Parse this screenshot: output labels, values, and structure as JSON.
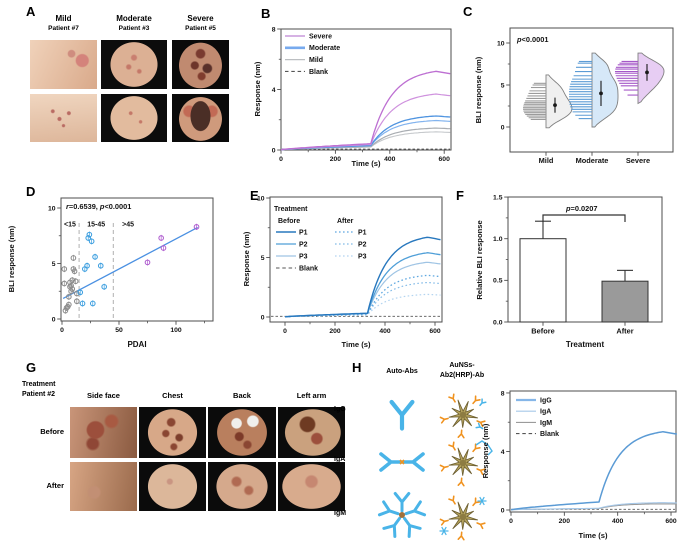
{
  "panelA": {
    "letter": "A",
    "groups": [
      {
        "severity": "Mild",
        "patient": "Patient #7",
        "photos": [
          "mild-face-photo",
          "mild-back-photo"
        ]
      },
      {
        "severity": "Moderate",
        "patient": "Patient #3",
        "photos": [
          "moderate-chest-photo",
          "moderate-back-photo"
        ]
      },
      {
        "severity": "Severe",
        "patient": "Patient #5",
        "photos": [
          "severe-chest-photo",
          "severe-back-photo"
        ]
      }
    ]
  },
  "panelG": {
    "letter": "G",
    "header_line1": "Treatment",
    "header_line2": "Patient #2",
    "columns": [
      "Side face",
      "Chest",
      "Back",
      "Left arm"
    ],
    "rows": [
      "Before",
      "After"
    ]
  },
  "panelH": {
    "letter": "H",
    "column1": "Auto-Abs",
    "column2_line1": "AuNSs-",
    "column2_line2": "Ab2(HRP)-Ab",
    "rows": [
      {
        "label": "IgG",
        "icon": "igg-antibody-icon"
      },
      {
        "label": "IgA",
        "icon": "iga-antibody-icon"
      },
      {
        "label": "IgM",
        "icon": "igm-antibody-icon"
      }
    ]
  },
  "chart_data": [
    {
      "panel": "B",
      "letter": "B",
      "type": "line",
      "xlabel": "Time (s)",
      "ylabel": "Response (nm)",
      "xlim": [
        0,
        625
      ],
      "ylim": [
        0,
        8
      ],
      "xticks": [
        0,
        200,
        400,
        600
      ],
      "yticks": [
        0,
        4,
        8
      ],
      "series": [
        {
          "name": "Severe",
          "color": "#bd6fd2",
          "width": 1.3,
          "base": 0.42,
          "peak": 5.2
        },
        {
          "name": "Severe",
          "color": "#cf92de",
          "width": 1.2,
          "base": 0.36,
          "peak": 3.7
        },
        {
          "name": "Moderate",
          "color": "#4f94e0",
          "width": 1.3,
          "base": 0.3,
          "peak": 2.25
        },
        {
          "name": "Moderate",
          "color": "#82b3ee",
          "width": 1.2,
          "base": 0.28,
          "peak": 1.95
        },
        {
          "name": "Mild",
          "color": "#a9adb2",
          "width": 1.2,
          "base": 0.22,
          "peak": 1.45
        },
        {
          "name": "Mild",
          "color": "#c6c9cc",
          "width": 1.1,
          "base": 0.2,
          "peak": 1.2
        }
      ],
      "blank": {
        "label": "Blank",
        "value": 0.06,
        "color": "#555555"
      },
      "legend": [
        {
          "label": "Severe",
          "color": "#c998dc",
          "width": 1.6
        },
        {
          "label": "Moderate",
          "color": "#77aaee",
          "width": 2.6
        },
        {
          "label": "Mild",
          "color": "#bcbfc2",
          "width": 1.2
        },
        {
          "label": "Blank",
          "color": "#555555",
          "width": 1.1,
          "dash": true
        }
      ]
    },
    {
      "panel": "C",
      "letter": "C",
      "type": "violin",
      "annotation_parts": [
        "p",
        "<0.0001"
      ],
      "ylabel": "BLI response (nm)",
      "yticks": [
        0,
        5,
        10
      ],
      "groups": [
        {
          "label": "Mild",
          "fill": "#f0f0f0",
          "rug": "#9b9b9b",
          "mean": 2.6,
          "sd": 0.9,
          "values": [
            0.9,
            1.1,
            1.3,
            1.5,
            1.7,
            1.9,
            2.1,
            2.3,
            2.5,
            2.7,
            2.9,
            3.1,
            3.4,
            3.7,
            4.0,
            4.3,
            4.7,
            5.0,
            5.2
          ]
        },
        {
          "label": "Moderate",
          "fill": "#d6e8f8",
          "rug": "#5b9bd5",
          "mean": 4.0,
          "sd": 1.5,
          "values": [
            1.0,
            1.4,
            1.8,
            2.1,
            2.4,
            2.7,
            3.0,
            3.3,
            3.6,
            3.9,
            4.2,
            4.5,
            4.8,
            5.1,
            5.4,
            5.7,
            6.1,
            6.6,
            7.1,
            7.6,
            7.8
          ]
        },
        {
          "label": "Severe",
          "fill": "#e7cdf3",
          "rug": "#a558c8",
          "mean": 6.5,
          "sd": 1.0,
          "values": [
            3.8,
            4.4,
            4.9,
            5.2,
            5.5,
            5.8,
            6.1,
            6.4,
            6.6,
            6.9,
            7.1,
            7.4,
            7.6,
            7.8
          ]
        }
      ]
    },
    {
      "panel": "D",
      "letter": "D",
      "type": "scatter",
      "annotation_parts": [
        "r",
        "=0.6539, ",
        "p",
        "<0.0001"
      ],
      "xlabel": "PDAI",
      "ylabel": "BLI response (nm)",
      "xticks": [
        0,
        50,
        100
      ],
      "yticks": [
        0,
        5,
        10
      ],
      "region_labels": [
        "<15",
        "15-45",
        ">45"
      ],
      "region_dividers": [
        15,
        45
      ],
      "point_error": 0.28,
      "trendline": {
        "color": "#4a90e2",
        "points": [
          [
            1,
            1.85
          ],
          [
            119,
            8.25
          ]
        ]
      },
      "groups": [
        {
          "name": "PDAI<15",
          "color": "#8c8c8c",
          "points": [
            [
              2,
              4.5
            ],
            [
              2,
              3.2
            ],
            [
              3,
              0.75
            ],
            [
              4,
              1.0
            ],
            [
              5,
              1.1
            ],
            [
              6,
              1.3
            ],
            [
              6,
              2.0
            ],
            [
              7,
              2.9
            ],
            [
              7,
              3.3
            ],
            [
              8,
              3.0
            ],
            [
              8,
              2.5
            ],
            [
              9,
              3.5
            ],
            [
              9,
              2.7
            ],
            [
              10,
              5.5
            ],
            [
              10,
              4.5
            ],
            [
              11,
              4.3
            ],
            [
              12,
              3.4
            ],
            [
              13,
              2.3
            ],
            [
              13,
              1.6
            ]
          ]
        },
        {
          "name": "PDAI 15-45",
          "color": "#3fa0e0",
          "points": [
            [
              16,
              2.4
            ],
            [
              18,
              1.4
            ],
            [
              20,
              4.5
            ],
            [
              22,
              4.8
            ],
            [
              23,
              7.3
            ],
            [
              24,
              7.6
            ],
            [
              26,
              7.0
            ],
            [
              27,
              1.4
            ],
            [
              29,
              5.6
            ],
            [
              34,
              4.8
            ],
            [
              37,
              2.9
            ]
          ]
        },
        {
          "name": "PDAI>45",
          "color": "#b05fd0",
          "points": [
            [
              75,
              5.1
            ],
            [
              87,
              7.3
            ],
            [
              89,
              6.4
            ],
            [
              118,
              8.3
            ]
          ]
        }
      ]
    },
    {
      "panel": "E",
      "letter": "E",
      "type": "line",
      "legend_title": "Treatment",
      "legend_cols": [
        "Before",
        "After"
      ],
      "xlabel": "Time (s)",
      "ylabel": "Response (nm)",
      "xlim": [
        0,
        625
      ],
      "ylim": [
        0,
        10
      ],
      "xticks": [
        0,
        200,
        400,
        600
      ],
      "yticks": [
        0,
        5,
        10
      ],
      "before": [
        {
          "name": "P1",
          "color": "#2878be",
          "width": 1.4,
          "base": 0.32,
          "peak": 6.7
        },
        {
          "name": "P2",
          "color": "#4f9fd8",
          "width": 1.3,
          "base": 0.3,
          "peak": 5.4
        },
        {
          "name": "P3",
          "color": "#9fc4e4",
          "width": 1.2,
          "base": 0.28,
          "peak": 4.6
        }
      ],
      "after": [
        {
          "name": "P1",
          "color": "#5fa8e0",
          "width": 1.3,
          "base": 0.22,
          "peak": 3.5
        },
        {
          "name": "P2",
          "color": "#85bce8",
          "width": 1.2,
          "base": 0.2,
          "peak": 2.9
        },
        {
          "name": "P3",
          "color": "#b3d4f0",
          "width": 1.2,
          "base": 0.18,
          "peak": 1.9
        }
      ],
      "blank": {
        "label": "Blank",
        "value": 0.06,
        "color": "#555555"
      }
    },
    {
      "panel": "F",
      "letter": "F",
      "type": "bar",
      "ylabel": "Relative BLI response",
      "xlabel": "Treatment",
      "ytick_labels": [
        "0.0",
        "0.5",
        "1.0",
        "1.5"
      ],
      "categories": [
        "Before",
        "After"
      ],
      "values": [
        1.0,
        0.49
      ],
      "errors": [
        0.21,
        0.13
      ],
      "bar_fills": [
        "#ffffff",
        "#9a9a9a"
      ],
      "annotation_parts": [
        "p",
        "=0.0207"
      ]
    },
    {
      "panel": "H",
      "type": "line",
      "xlabel": "Time (s)",
      "ylabel": "Response (nm)",
      "xlim": [
        0,
        625
      ],
      "ylim": [
        0,
        8
      ],
      "xticks": [
        0,
        200,
        400,
        600
      ],
      "yticks": [
        0,
        4,
        8
      ],
      "series": [
        {
          "name": "IgG",
          "color": "#5b9bd5",
          "width": 1.5,
          "base": 0.55,
          "peak": 5.35
        },
        {
          "name": "IgA",
          "color": "#a6c8e8",
          "width": 1.1,
          "base": 0.12,
          "peak": 0.5
        },
        {
          "name": "IgM",
          "color": "#9b9b9b",
          "width": 1.1,
          "base": 0.1,
          "peak": 0.42
        }
      ],
      "blank": {
        "label": "Blank",
        "value": 0.05,
        "color": "#555555"
      },
      "legend": [
        {
          "label": "IgG",
          "color": "#85b6e8",
          "width": 2.2
        },
        {
          "label": "IgA",
          "color": "#a6c8e8",
          "width": 1.1
        },
        {
          "label": "IgM",
          "color": "#9b9b9b",
          "width": 1.1
        },
        {
          "label": "Blank",
          "color": "#555555",
          "width": 1.1,
          "dash": true
        }
      ]
    }
  ]
}
